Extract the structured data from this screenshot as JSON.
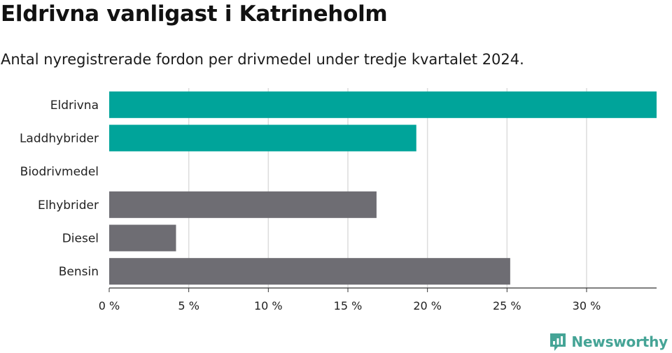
{
  "title": "Eldrivna vanligast i Katrineholm",
  "subtitle": "Antal nyregistrerade fordon per drivmedel under tredje kvartalet 2024.",
  "brand": {
    "name": "Newsworthy",
    "icon": "newsworthy-logo-icon",
    "color": "#45a496"
  },
  "chart_data": {
    "type": "bar",
    "orientation": "horizontal",
    "categories": [
      "Eldrivna",
      "Laddhybrider",
      "Biodrivmedel",
      "Elhybrider",
      "Diesel",
      "Bensin"
    ],
    "values": [
      34.4,
      19.3,
      0,
      16.8,
      4.2,
      25.2
    ],
    "colors": [
      "#00a49a",
      "#00a49a",
      "#00a49a",
      "#6e6d73",
      "#6e6d73",
      "#6e6d73"
    ],
    "xlim": [
      0,
      34.4
    ],
    "xticks": [
      0,
      5,
      10,
      15,
      20,
      25,
      30
    ],
    "xtick_labels": [
      "0 %",
      "5 %",
      "10 %",
      "15 %",
      "20 %",
      "25 %",
      "30 %"
    ],
    "xlabel": "",
    "ylabel": "",
    "grid": true
  }
}
